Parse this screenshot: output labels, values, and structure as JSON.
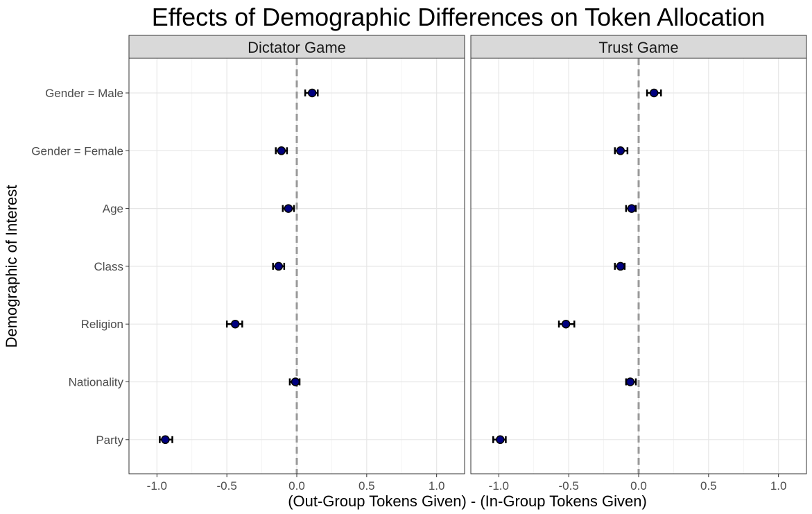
{
  "chart_data": {
    "type": "scatter",
    "title": "Effects of Demographic Differences on Token Allocation",
    "xlabel": "(Out-Group Tokens Given) - (In-Group Tokens Given)",
    "ylabel": "Demographic of Interest",
    "xlim": [
      -1.2,
      1.2
    ],
    "x_ticks": [
      -1.0,
      -0.5,
      0.0,
      0.5,
      1.0
    ],
    "x_tick_labels": [
      "-1.0",
      "-0.5",
      "0.0",
      "0.5",
      "1.0"
    ],
    "reference_line": 0.0,
    "categories": [
      "Gender = Male",
      "Gender = Female",
      "Age",
      "Class",
      "Religion",
      "Nationality",
      "Party"
    ],
    "grid": true,
    "marker_color": "#00007f",
    "reference_line_color": "#999999",
    "facets": [
      {
        "name": "Dictator Game",
        "points": [
          {
            "category": "Gender = Male",
            "x": 0.11,
            "lo": 0.06,
            "hi": 0.15
          },
          {
            "category": "Gender = Female",
            "x": -0.11,
            "lo": -0.15,
            "hi": -0.07
          },
          {
            "category": "Age",
            "x": -0.06,
            "lo": -0.1,
            "hi": -0.02
          },
          {
            "category": "Class",
            "x": -0.13,
            "lo": -0.17,
            "hi": -0.09
          },
          {
            "category": "Religion",
            "x": -0.44,
            "lo": -0.5,
            "hi": -0.39
          },
          {
            "category": "Nationality",
            "x": -0.01,
            "lo": -0.05,
            "hi": 0.02
          },
          {
            "category": "Party",
            "x": -0.94,
            "lo": -0.98,
            "hi": -0.89
          }
        ]
      },
      {
        "name": "Trust Game",
        "points": [
          {
            "category": "Gender = Male",
            "x": 0.11,
            "lo": 0.06,
            "hi": 0.16
          },
          {
            "category": "Gender = Female",
            "x": -0.13,
            "lo": -0.17,
            "hi": -0.08
          },
          {
            "category": "Age",
            "x": -0.05,
            "lo": -0.09,
            "hi": -0.02
          },
          {
            "category": "Class",
            "x": -0.13,
            "lo": -0.17,
            "hi": -0.1
          },
          {
            "category": "Religion",
            "x": -0.52,
            "lo": -0.57,
            "hi": -0.46
          },
          {
            "category": "Nationality",
            "x": -0.06,
            "lo": -0.09,
            "hi": -0.02
          },
          {
            "category": "Party",
            "x": -0.99,
            "lo": -1.04,
            "hi": -0.95
          }
        ]
      }
    ]
  }
}
